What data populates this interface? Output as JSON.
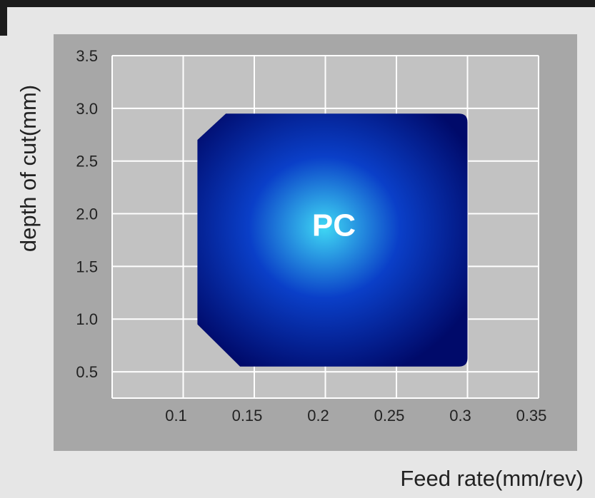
{
  "chart_data": {
    "type": "area",
    "title": "",
    "xlabel": "Feed rate(mm/rev)",
    "ylabel": "depth of cut(mm)",
    "xlim": [
      0.05,
      0.35
    ],
    "ylim": [
      0.25,
      3.5
    ],
    "x_ticks": [
      0.1,
      0.15,
      0.2,
      0.25,
      0.3,
      0.35
    ],
    "x_tick_labels": [
      "0.1",
      "0.15",
      "0.2",
      "0.25",
      "0.3",
      "0.35"
    ],
    "y_ticks": [
      0.5,
      1.0,
      1.5,
      2.0,
      2.5,
      3.0,
      3.5
    ],
    "y_tick_labels": [
      "0.5",
      "1.0",
      "1.5",
      "2.0",
      "2.5",
      "3.0",
      "3.5"
    ],
    "grid": true,
    "region": {
      "label": "PC",
      "polygon": [
        [
          0.11,
          2.7
        ],
        [
          0.13,
          2.95
        ],
        [
          0.3,
          2.95
        ],
        [
          0.3,
          0.55
        ],
        [
          0.14,
          0.55
        ],
        [
          0.11,
          0.95
        ]
      ]
    },
    "colors": {
      "region_edge": "#000a6a",
      "region_center": "#3fd8f4",
      "plot_bg": "#c2c2c2",
      "frame_bg": "#a7a7a7",
      "grid": "#ffffff"
    }
  }
}
